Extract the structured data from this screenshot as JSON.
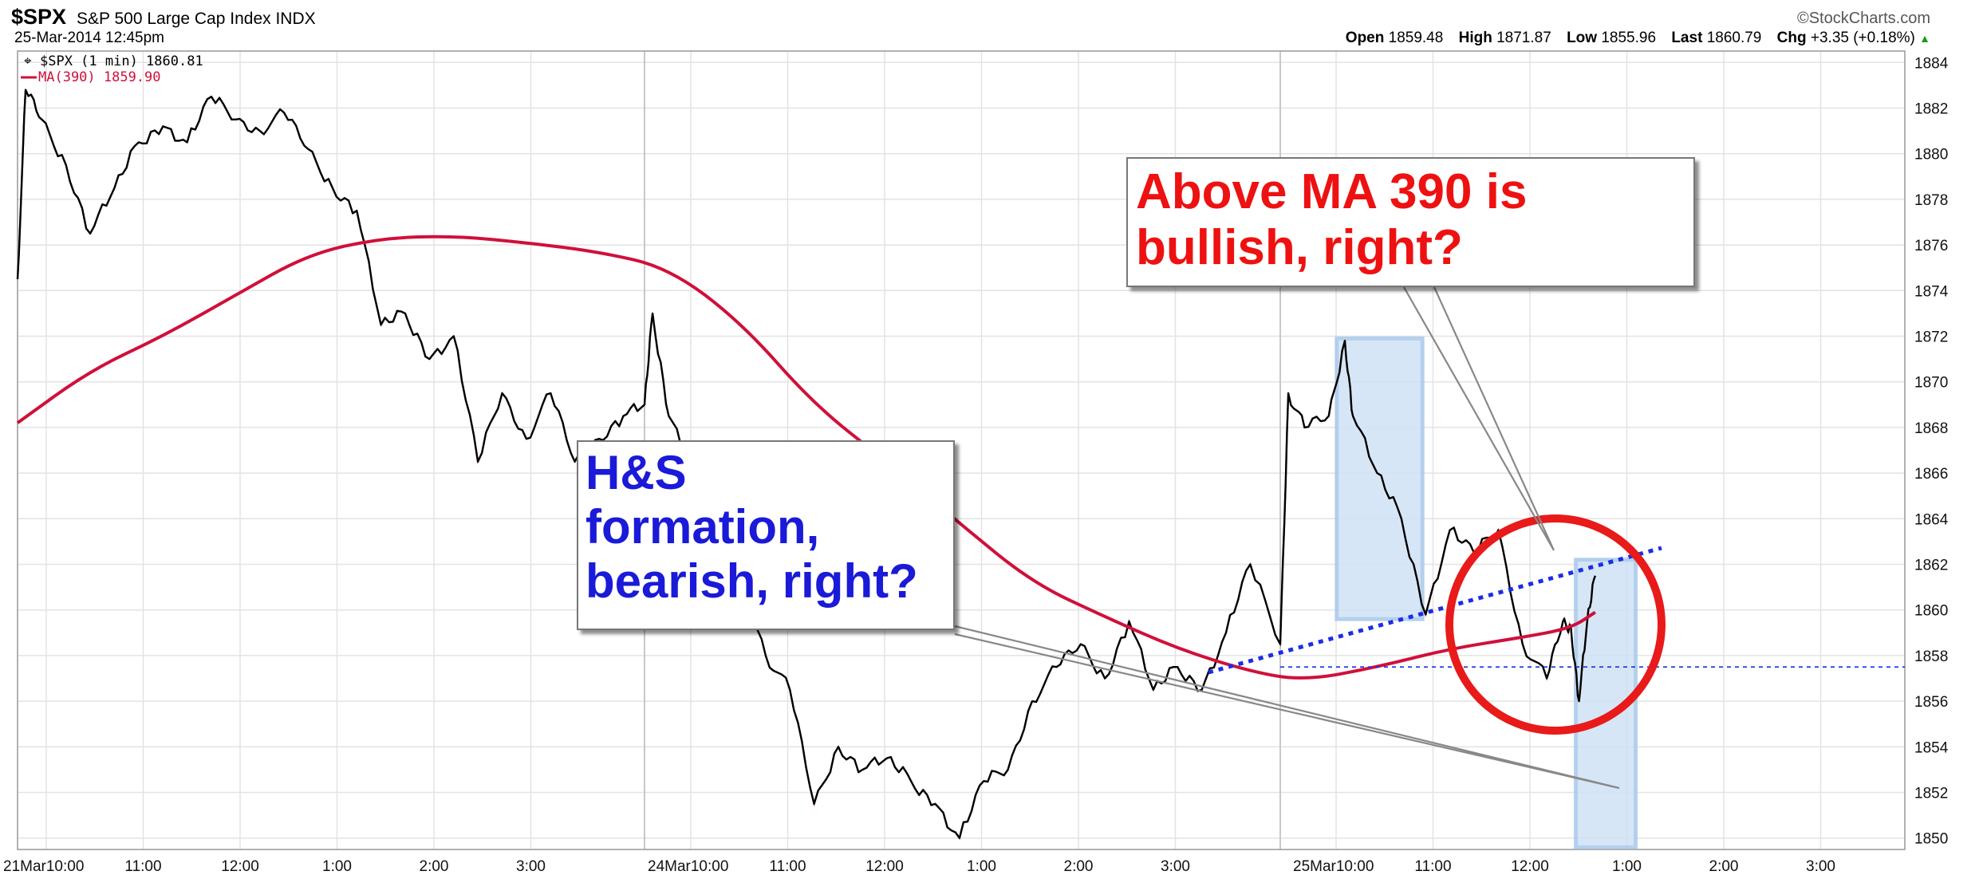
{
  "header": {
    "symbol": "$SPX",
    "index_name": "S&P 500 Large Cap Index INDX",
    "date": "25-Mar-2014 12:45pm",
    "watermark": "©StockCharts.com",
    "ohlc": {
      "open_label": "Open",
      "open": "1859.48",
      "high_label": "High",
      "high": "1871.87",
      "low_label": "Low",
      "low": "1855.96",
      "last_label": "Last",
      "last": "1860.79",
      "chg_label": "Chg",
      "chg": "+3.35 (+0.18%)",
      "chg_icon": "up-triangle-icon"
    }
  },
  "legend": {
    "price": "$SPX (1 min) 1860.81",
    "ma": "MA(390) 1859.90"
  },
  "annotations": {
    "ma_box": [
      "Above MA 390 is",
      "bullish, right?"
    ],
    "hs_box": [
      "H&S",
      "formation,",
      "bearish, right?"
    ]
  },
  "colors": {
    "price": "#000000",
    "price_down": "#cc0000",
    "ma": "#d0103a",
    "trendline": "#1a2ee6",
    "highlight_fill": "#cfe2f5",
    "highlight_stroke": "#a9c8ea",
    "circle": "#e81a1a",
    "grid": "#e3e3e3"
  },
  "chart_data": {
    "type": "line",
    "title": "$SPX S&P 500 Large Cap Index INDX",
    "ylim": [
      1849.5,
      1884.5
    ],
    "y_ticks": [
      1850,
      1852,
      1854,
      1856,
      1858,
      1860,
      1862,
      1864,
      1866,
      1868,
      1870,
      1872,
      1874,
      1876,
      1878,
      1880,
      1882,
      1884
    ],
    "x_ticks": [
      "21Mar10:00",
      "11:00",
      "12:00",
      "1:00",
      "2:00",
      "3:00",
      "24Mar10:00",
      "11:00",
      "12:00",
      "1:00",
      "2:00",
      "3:00",
      "25Mar10:00",
      "11:00",
      "12:00",
      "1:00",
      "2:00",
      "3:00"
    ],
    "grid": true,
    "series": [
      {
        "name": "$SPX (1 min)",
        "x": [
          "21Mar09:30",
          "21Mar09:35",
          "21Mar09:45",
          "21Mar10:00",
          "21Mar10:15",
          "21Mar10:30",
          "21Mar10:45",
          "21Mar11:00",
          "21Mar11:15",
          "21Mar11:30",
          "21Mar11:45",
          "21Mar12:00",
          "21Mar12:15",
          "21Mar12:30",
          "21Mar12:45",
          "21Mar13:00",
          "21Mar13:15",
          "21Mar13:30",
          "21Mar13:45",
          "21Mar14:00",
          "21Mar14:15",
          "21Mar14:30",
          "21Mar14:45",
          "21Mar15:00",
          "21Mar15:15",
          "21Mar15:30",
          "21Mar15:45",
          "24Mar09:30",
          "24Mar09:35",
          "24Mar09:45",
          "24Mar10:00",
          "24Mar10:15",
          "24Mar10:30",
          "24Mar10:45",
          "24Mar11:00",
          "24Mar11:15",
          "24Mar11:30",
          "24Mar11:45",
          "24Mar12:00",
          "24Mar12:15",
          "24Mar12:30",
          "24Mar12:45",
          "24Mar13:00",
          "24Mar13:15",
          "24Mar13:30",
          "24Mar13:45",
          "24Mar14:00",
          "24Mar14:15",
          "24Mar14:30",
          "24Mar14:45",
          "24Mar15:00",
          "24Mar15:15",
          "24Mar15:30",
          "24Mar15:45",
          "25Mar09:30",
          "25Mar09:35",
          "25Mar09:45",
          "25Mar10:00",
          "25Mar10:10",
          "25Mar10:15",
          "25Mar10:30",
          "25Mar10:45",
          "25Mar11:00",
          "25Mar11:15",
          "25Mar11:30",
          "25Mar11:45",
          "25Mar12:00",
          "25Mar12:15",
          "25Mar12:25",
          "25Mar12:30",
          "25Mar12:35",
          "25Mar12:40",
          "25Mar12:45"
        ],
        "values": [
          1874.5,
          1882.8,
          1881.5,
          1879.5,
          1876.5,
          1878.5,
          1880.5,
          1881.2,
          1880.5,
          1882.5,
          1881.5,
          1881.0,
          1881.8,
          1880.2,
          1878.5,
          1877.5,
          1872.5,
          1873.0,
          1871.0,
          1872.0,
          1866.5,
          1869.5,
          1867.5,
          1869.5,
          1866.5,
          1867.5,
          1868.5,
          1869.0,
          1873.0,
          1868.5,
          1866.5,
          1867.0,
          1862.0,
          1858.0,
          1856.5,
          1851.5,
          1854.0,
          1853.0,
          1853.5,
          1852.5,
          1851.5,
          1850.0,
          1852.5,
          1853.0,
          1856.0,
          1857.5,
          1858.5,
          1857.0,
          1859.5,
          1856.5,
          1857.5,
          1856.5,
          1859.0,
          1862.0,
          1858.5,
          1869.5,
          1868.0,
          1868.5,
          1871.8,
          1868.5,
          1866.0,
          1864.0,
          1859.8,
          1863.5,
          1862.5,
          1863.5,
          1858.5,
          1857.0,
          1859.5,
          1859.2,
          1856.0,
          1859.5,
          1861.5
        ]
      },
      {
        "name": "MA(390)",
        "x": [
          "21Mar09:30",
          "21Mar10:15",
          "21Mar11:00",
          "21Mar11:45",
          "21Mar12:30",
          "21Mar13:15",
          "21Mar14:00",
          "21Mar14:45",
          "21Mar15:30",
          "24Mar09:45",
          "24Mar10:30",
          "24Mar11:15",
          "24Mar12:00",
          "24Mar12:45",
          "24Mar13:30",
          "24Mar14:15",
          "24Mar15:00",
          "24Mar15:45",
          "25Mar09:45",
          "25Mar10:30",
          "25Mar11:15",
          "25Mar12:00",
          "25Mar12:30",
          "25Mar12:45"
        ],
        "values": [
          1868.2,
          1870.5,
          1872.0,
          1873.8,
          1875.6,
          1876.3,
          1876.4,
          1876.1,
          1875.7,
          1875.0,
          1872.6,
          1869.0,
          1866.5,
          1863.8,
          1861.2,
          1859.7,
          1858.3,
          1857.3,
          1856.9,
          1857.5,
          1858.3,
          1858.8,
          1859.2,
          1859.9
        ]
      }
    ]
  }
}
